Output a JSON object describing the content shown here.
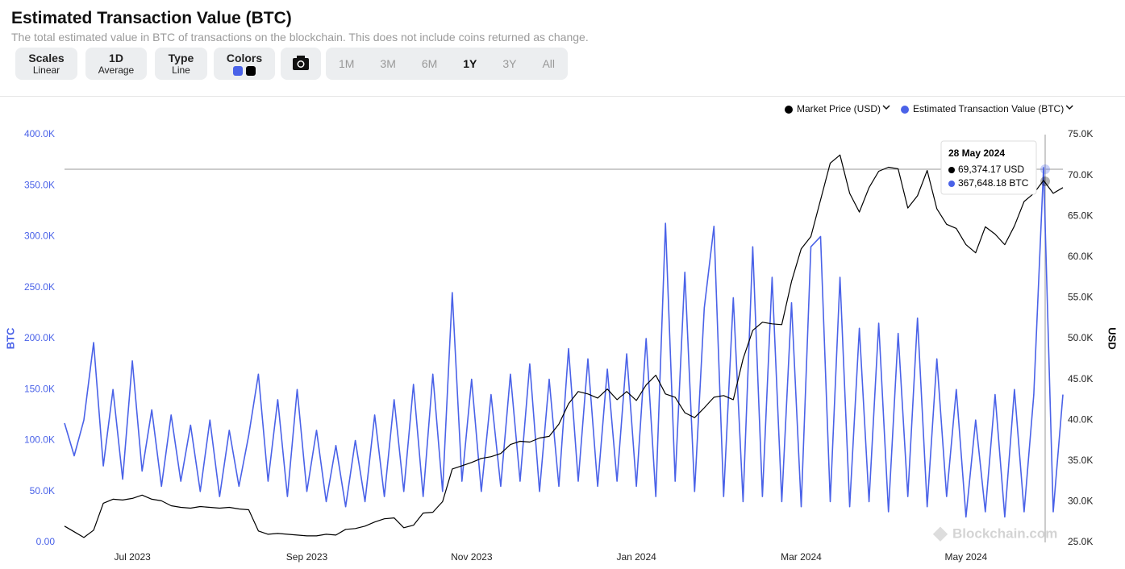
{
  "header": {
    "title": "Estimated Transaction Value (BTC)",
    "subtitle": "The total estimated value in BTC of transactions on the blockchain. This does not include coins returned as change."
  },
  "controls": {
    "scales": {
      "label": "Scales",
      "value": "Linear"
    },
    "average": {
      "label": "1D",
      "value": "Average"
    },
    "type": {
      "label": "Type",
      "value": "Line"
    },
    "colors": {
      "label": "Colors"
    },
    "ranges": [
      "1M",
      "3M",
      "6M",
      "1Y",
      "3Y",
      "All"
    ]
  },
  "tooltip": {
    "date": "28 May 2024",
    "lines": [
      "69,374.17 USD",
      "367,648.18 BTC"
    ]
  },
  "watermark": "Blockchain.com",
  "chart_data": {
    "type": "line",
    "ylabel": "BTC",
    "y2label": "USD",
    "categories": [
      null,
      null,
      null,
      null,
      null,
      null,
      null,
      "Jul 2023",
      null,
      null,
      null,
      null,
      null,
      null,
      null,
      null,
      null,
      null,
      null,
      null,
      null,
      null,
      null,
      null,
      null,
      "Sep 2023",
      null,
      null,
      null,
      null,
      null,
      null,
      null,
      null,
      null,
      null,
      null,
      null,
      null,
      null,
      null,
      null,
      "Nov 2023",
      null,
      null,
      null,
      null,
      null,
      null,
      null,
      null,
      null,
      null,
      null,
      null,
      null,
      null,
      null,
      null,
      "Jan 2024",
      null,
      null,
      null,
      null,
      null,
      null,
      null,
      null,
      null,
      null,
      null,
      null,
      null,
      null,
      null,
      null,
      "Mar 2024",
      null,
      null,
      null,
      null,
      null,
      null,
      null,
      null,
      null,
      null,
      null,
      null,
      null,
      null,
      null,
      null,
      "May 2024",
      null,
      null,
      null,
      null,
      null,
      null,
      null,
      null,
      null,
      null
    ],
    "series": [
      {
        "name": "Market Price (USD)",
        "color": "#000000",
        "axis": "y2",
        "values": [
          27000,
          26300,
          25600,
          26500,
          29800,
          30300,
          30200,
          30400,
          30800,
          30300,
          30100,
          29500,
          29300,
          29200,
          29400,
          29300,
          29200,
          29300,
          29100,
          29000,
          26400,
          26000,
          26100,
          26000,
          25900,
          25800,
          25800,
          26000,
          25900,
          26600,
          26700,
          27000,
          27500,
          27900,
          28000,
          26800,
          27100,
          28600,
          28700,
          30000,
          34000,
          34400,
          34800,
          35300,
          35500,
          35900,
          37000,
          37400,
          37300,
          37800,
          38000,
          39500,
          42000,
          43500,
          43200,
          42700,
          43800,
          42500,
          43500,
          42400,
          44300,
          45500,
          43200,
          42800,
          40900,
          40300,
          41500,
          42800,
          43000,
          42500,
          47500,
          51000,
          52000,
          51800,
          51700,
          57000,
          61000,
          62500,
          67000,
          71500,
          72500,
          67800,
          65500,
          68500,
          70500,
          71000,
          70800,
          66000,
          67500,
          70600,
          65900,
          64000,
          63500,
          61500,
          60500,
          63700,
          62800,
          61500,
          63800,
          66800,
          67800,
          69374.17,
          67800,
          68500
        ]
      },
      {
        "name": "Estimated Transaction Value (BTC)",
        "color": "#4a62e8",
        "values": [
          117000,
          85000,
          120000,
          196000,
          75000,
          150000,
          62000,
          178000,
          70000,
          130000,
          55000,
          125000,
          60000,
          115000,
          50000,
          120000,
          45000,
          110000,
          55000,
          105000,
          165000,
          60000,
          140000,
          45000,
          150000,
          50000,
          110000,
          40000,
          95000,
          35000,
          100000,
          40000,
          125000,
          45000,
          140000,
          50000,
          155000,
          45000,
          165000,
          50000,
          245000,
          60000,
          160000,
          50000,
          145000,
          55000,
          165000,
          60000,
          175000,
          50000,
          160000,
          55000,
          190000,
          60000,
          180000,
          55000,
          170000,
          60000,
          185000,
          55000,
          200000,
          45000,
          313000,
          60000,
          265000,
          50000,
          230000,
          310000,
          45000,
          240000,
          40000,
          290000,
          45000,
          260000,
          40000,
          235000,
          35000,
          290000,
          300000,
          40000,
          260000,
          35000,
          210000,
          40000,
          215000,
          30000,
          205000,
          45000,
          220000,
          35000,
          180000,
          45000,
          150000,
          25000,
          120000,
          30000,
          145000,
          25000,
          150000,
          30000,
          145000,
          367648.18,
          30000,
          145000
        ]
      }
    ],
    "ylim": [
      0,
      400000
    ],
    "yticks": [
      {
        "value": 0,
        "label": "0.00"
      },
      {
        "value": 50000,
        "label": "50.0K"
      },
      {
        "value": 100000,
        "label": "100.0K"
      },
      {
        "value": 150000,
        "label": "150.0K"
      },
      {
        "value": 200000,
        "label": "200.0K"
      },
      {
        "value": 250000,
        "label": "250.0K"
      },
      {
        "value": 300000,
        "label": "300.0K"
      },
      {
        "value": 350000,
        "label": "350.0K"
      },
      {
        "value": 400000,
        "label": "400.0K"
      }
    ],
    "y2lim": [
      25000,
      75000
    ],
    "y2ticks": [
      {
        "value": 25000,
        "label": "25.0K"
      },
      {
        "value": 30000,
        "label": "30.0K"
      },
      {
        "value": 35000,
        "label": "35.0K"
      },
      {
        "value": 40000,
        "label": "40.0K"
      },
      {
        "value": 45000,
        "label": "45.0K"
      },
      {
        "value": 50000,
        "label": "50.0K"
      },
      {
        "value": 55000,
        "label": "55.0K"
      },
      {
        "value": 60000,
        "label": "60.0K"
      },
      {
        "value": 65000,
        "label": "65.0K"
      },
      {
        "value": 70000,
        "label": "70.0K"
      },
      {
        "value": 75000,
        "label": "75.0K"
      }
    ],
    "grid": false
  }
}
